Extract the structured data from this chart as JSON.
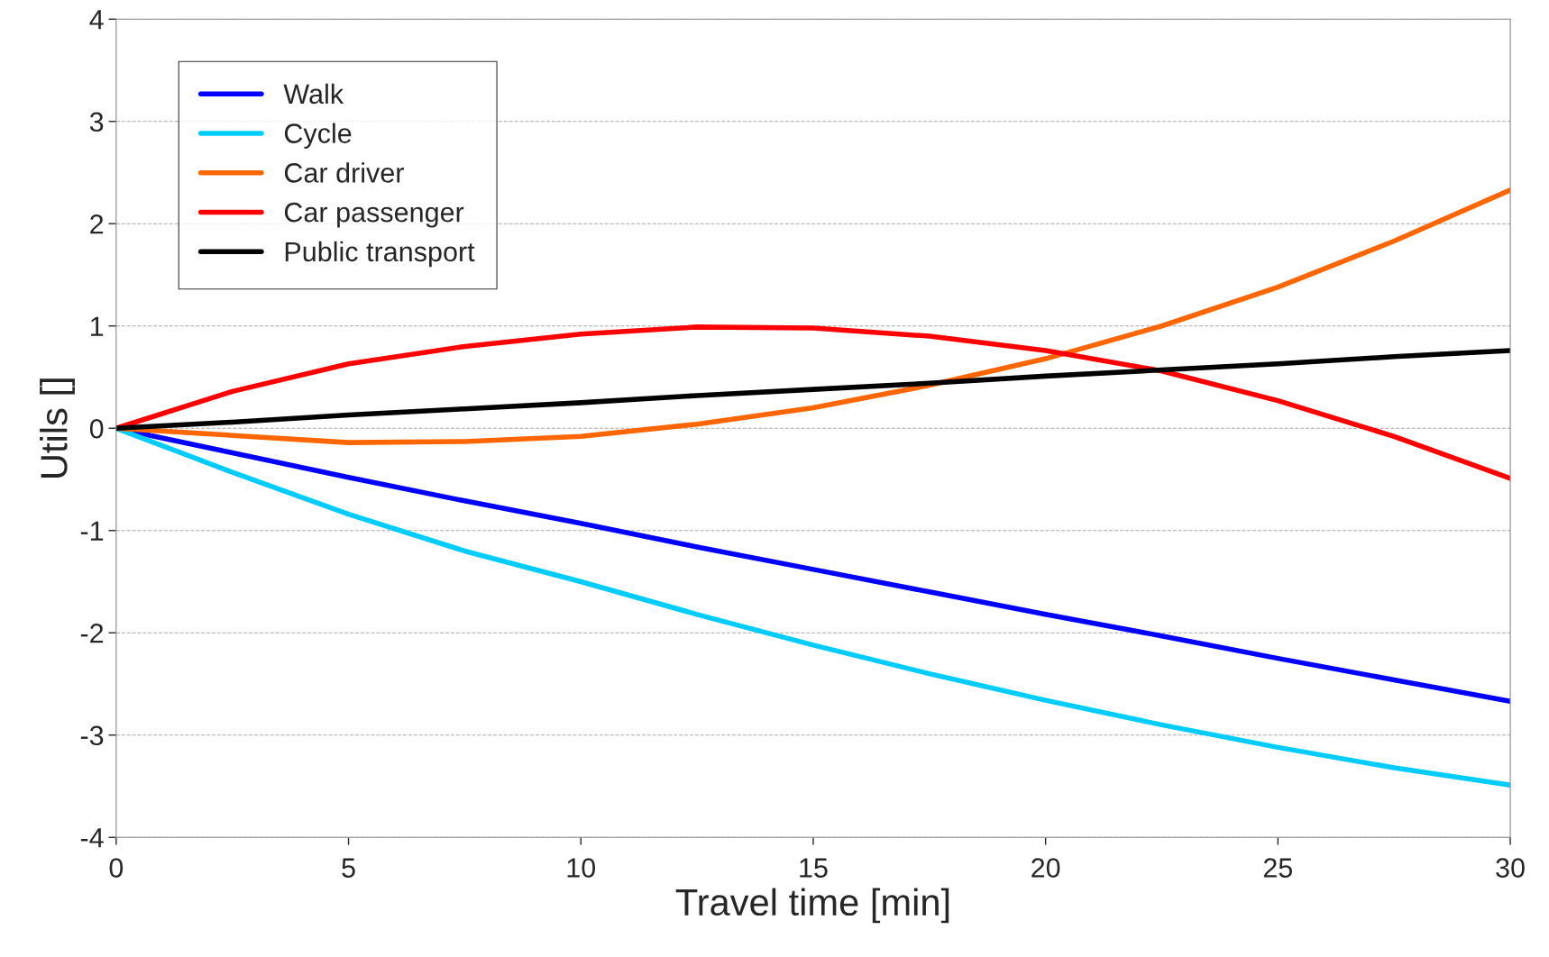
{
  "chart_data": {
    "type": "line",
    "xlabel": "Travel time [min]",
    "ylabel": "Utils []",
    "xlim": [
      0,
      30
    ],
    "ylim": [
      -4,
      4
    ],
    "xticks": [
      0,
      5,
      10,
      15,
      20,
      25,
      30
    ],
    "yticks": [
      -4,
      -3,
      -2,
      -1,
      0,
      1,
      2,
      3,
      4
    ],
    "grid": "y",
    "legend": "top left",
    "line_style": "solid",
    "marker": "none",
    "x": [
      0,
      2.5,
      5,
      7.5,
      10,
      12.5,
      15,
      17.5,
      20,
      22.5,
      25,
      27.5,
      30
    ],
    "series": [
      {
        "name": "Walk",
        "color": "#0000ff",
        "values": [
          0,
          -0.24,
          -0.48,
          -0.71,
          -0.93,
          -1.16,
          -1.38,
          -1.6,
          -1.82,
          -2.03,
          -2.25,
          -2.46,
          -2.67
        ]
      },
      {
        "name": "Cycle",
        "color": "#00ccff",
        "values": [
          0,
          -0.43,
          -0.84,
          -1.2,
          -1.5,
          -1.82,
          -2.12,
          -2.4,
          -2.66,
          -2.9,
          -3.12,
          -3.32,
          -3.49
        ]
      },
      {
        "name": "Car driver",
        "color": "#ff6600",
        "values": [
          0,
          -0.07,
          -0.14,
          -0.13,
          -0.08,
          0.04,
          0.2,
          0.42,
          0.68,
          1.0,
          1.38,
          1.83,
          2.33
        ]
      },
      {
        "name": "Car passenger",
        "color": "#ff0000",
        "values": [
          0,
          0.36,
          0.63,
          0.8,
          0.92,
          0.99,
          0.98,
          0.9,
          0.76,
          0.56,
          0.27,
          -0.08,
          -0.49
        ]
      },
      {
        "name": "Public transport",
        "color": "#000000",
        "values": [
          0,
          0.06,
          0.13,
          0.19,
          0.25,
          0.32,
          0.38,
          0.44,
          0.51,
          0.57,
          0.63,
          0.7,
          0.76
        ]
      }
    ]
  }
}
